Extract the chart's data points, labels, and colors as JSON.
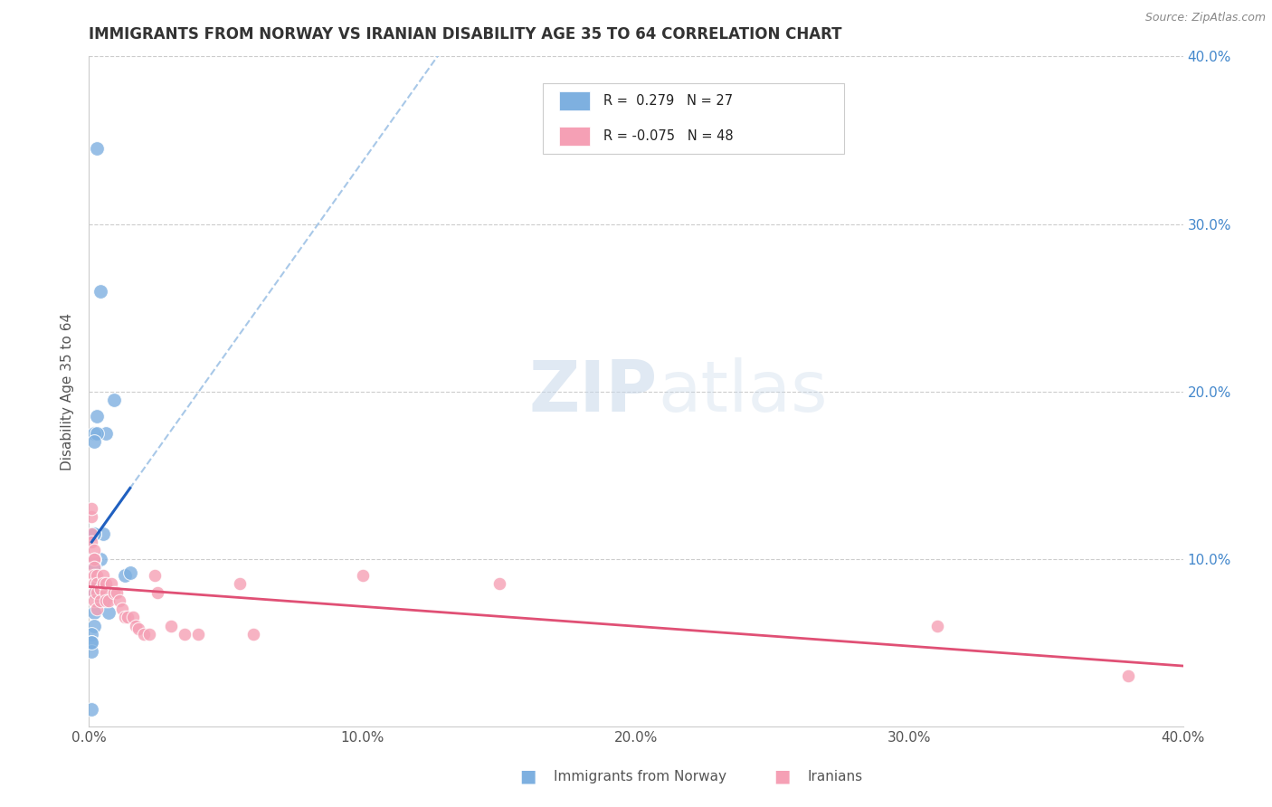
{
  "title": "IMMIGRANTS FROM NORWAY VS IRANIAN DISABILITY AGE 35 TO 64 CORRELATION CHART",
  "source": "Source: ZipAtlas.com",
  "ylabel": "Disability Age 35 to 64",
  "xlim": [
    0.0,
    0.4
  ],
  "ylim": [
    0.0,
    0.4
  ],
  "norway_color": "#7EB0E0",
  "iran_color": "#F5A0B5",
  "norway_line_color": "#2060C0",
  "iran_line_color": "#E05075",
  "dashed_line_color": "#A8C8E8",
  "norway_R": 0.279,
  "norway_N": 27,
  "iran_R": -0.075,
  "iran_N": 48,
  "norway_label": "Immigrants from Norway",
  "iran_label": "Iranians",
  "norway_x": [
    0.005,
    0.004,
    0.004,
    0.003,
    0.009,
    0.006,
    0.003,
    0.002,
    0.003,
    0.002,
    0.002,
    0.002,
    0.002,
    0.002,
    0.002,
    0.013,
    0.015,
    0.003,
    0.005,
    0.007,
    0.002,
    0.002,
    0.001,
    0.001,
    0.001,
    0.001,
    0.001
  ],
  "norway_y": [
    0.115,
    0.1,
    0.26,
    0.345,
    0.195,
    0.175,
    0.185,
    0.175,
    0.175,
    0.17,
    0.115,
    0.1,
    0.115,
    0.095,
    0.08,
    0.09,
    0.092,
    0.085,
    0.075,
    0.068,
    0.068,
    0.06,
    0.055,
    0.05,
    0.045,
    0.01,
    0.05
  ],
  "iran_x": [
    0.001,
    0.001,
    0.001,
    0.001,
    0.001,
    0.002,
    0.002,
    0.002,
    0.002,
    0.002,
    0.002,
    0.002,
    0.002,
    0.003,
    0.003,
    0.003,
    0.003,
    0.004,
    0.004,
    0.005,
    0.005,
    0.006,
    0.006,
    0.006,
    0.007,
    0.008,
    0.009,
    0.01,
    0.011,
    0.012,
    0.013,
    0.014,
    0.016,
    0.017,
    0.018,
    0.02,
    0.022,
    0.024,
    0.025,
    0.03,
    0.035,
    0.04,
    0.055,
    0.06,
    0.1,
    0.15,
    0.31,
    0.38
  ],
  "iran_y": [
    0.09,
    0.115,
    0.125,
    0.13,
    0.11,
    0.105,
    0.1,
    0.1,
    0.095,
    0.09,
    0.085,
    0.08,
    0.075,
    0.09,
    0.085,
    0.08,
    0.07,
    0.082,
    0.075,
    0.09,
    0.085,
    0.085,
    0.08,
    0.075,
    0.075,
    0.085,
    0.08,
    0.08,
    0.075,
    0.07,
    0.065,
    0.065,
    0.065,
    0.06,
    0.058,
    0.055,
    0.055,
    0.09,
    0.08,
    0.06,
    0.055,
    0.055,
    0.085,
    0.055,
    0.09,
    0.085,
    0.06,
    0.03
  ],
  "background_color": "#ffffff",
  "grid_color": "#cccccc",
  "title_color": "#333333",
  "tick_color_x": "#555555",
  "tick_color_right": "#4488CC"
}
